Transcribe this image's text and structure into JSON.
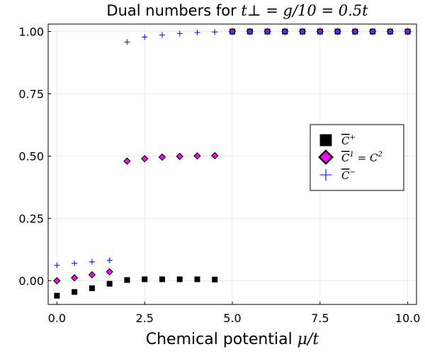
{
  "chart_data": {
    "type": "scatter",
    "title_text": "Dual numbers for ",
    "title_math": "t⊥ = g/10 = 0.5t",
    "xlabel_text": "Chemical potential ",
    "xlabel_math": "μ/t",
    "ylabel": "",
    "xlim": [
      -0.25,
      10.25
    ],
    "ylim": [
      -0.095,
      1.03
    ],
    "xticks": [
      0.0,
      2.5,
      5.0,
      7.5,
      10.0
    ],
    "xtick_labels": [
      "0.0",
      "2.5",
      "5.0",
      "7.5",
      "10.0"
    ],
    "yticks": [
      0.0,
      0.25,
      0.5,
      0.75,
      1.0
    ],
    "ytick_labels": [
      "0.00",
      "0.25",
      "0.50",
      "0.75",
      "1.00"
    ],
    "grid": true,
    "legend_position": "right-middle",
    "series": [
      {
        "name": "C̄⁺",
        "marker": "square",
        "color": "#000000",
        "points": [
          [
            0.0,
            -0.06
          ],
          [
            0.5,
            -0.045
          ],
          [
            1.0,
            -0.03
          ],
          [
            1.5,
            -0.012
          ],
          [
            2.0,
            0.003
          ],
          [
            2.5,
            0.006
          ],
          [
            3.0,
            0.006
          ],
          [
            3.5,
            0.006
          ],
          [
            4.0,
            0.006
          ],
          [
            4.5,
            0.005
          ],
          [
            5.0,
            1.0
          ],
          [
            5.5,
            1.0
          ],
          [
            6.0,
            1.0
          ],
          [
            6.5,
            1.0
          ],
          [
            7.0,
            1.0
          ],
          [
            7.5,
            1.0
          ],
          [
            8.0,
            1.0
          ],
          [
            8.5,
            1.0
          ],
          [
            9.0,
            1.0
          ],
          [
            9.5,
            1.0
          ],
          [
            10.0,
            1.0
          ]
        ]
      },
      {
        "name": "C̄¹ = C̄²",
        "marker": "diamond",
        "color": "#ff00ff",
        "points": [
          [
            0.0,
            0.0
          ],
          [
            0.5,
            0.012
          ],
          [
            1.0,
            0.024
          ],
          [
            1.5,
            0.036
          ],
          [
            2.0,
            0.48
          ],
          [
            2.5,
            0.49
          ],
          [
            3.0,
            0.496
          ],
          [
            3.5,
            0.499
          ],
          [
            4.0,
            0.501
          ],
          [
            4.5,
            0.502
          ],
          [
            5.0,
            1.0
          ],
          [
            5.5,
            1.0
          ],
          [
            6.0,
            1.0
          ],
          [
            6.5,
            1.0
          ],
          [
            7.0,
            1.0
          ],
          [
            7.5,
            1.0
          ],
          [
            8.0,
            1.0
          ],
          [
            8.5,
            1.0
          ],
          [
            9.0,
            1.0
          ],
          [
            9.5,
            1.0
          ],
          [
            10.0,
            1.0
          ]
        ]
      },
      {
        "name": "C̄⁻",
        "marker": "plus",
        "color": "#3030ff",
        "points": [
          [
            0.0,
            0.062
          ],
          [
            0.5,
            0.07
          ],
          [
            1.0,
            0.076
          ],
          [
            1.5,
            0.082
          ],
          [
            2.0,
            0.958
          ],
          [
            2.5,
            0.978
          ],
          [
            3.0,
            0.986
          ],
          [
            3.5,
            0.992
          ],
          [
            4.0,
            0.996
          ],
          [
            4.5,
            0.998
          ],
          [
            5.0,
            1.0
          ],
          [
            5.5,
            1.0
          ],
          [
            6.0,
            1.0
          ],
          [
            6.5,
            1.0
          ],
          [
            7.0,
            1.0
          ],
          [
            7.5,
            1.0
          ],
          [
            8.0,
            1.0
          ],
          [
            8.5,
            1.0
          ],
          [
            9.0,
            1.0
          ],
          [
            9.5,
            1.0
          ],
          [
            10.0,
            1.0
          ]
        ]
      }
    ],
    "legend_entries": [
      {
        "symbol": "square",
        "color": "#000000",
        "label_base": "C",
        "label_sup": "+"
      },
      {
        "symbol": "diamond",
        "color": "#ff00ff",
        "label_base": "C",
        "label_sup": "1",
        "label_rhs": " = C",
        "label_rhs_sup": "2"
      },
      {
        "symbol": "plus",
        "color": "#3030ff",
        "label_base": "C",
        "label_sup": "−"
      }
    ]
  }
}
